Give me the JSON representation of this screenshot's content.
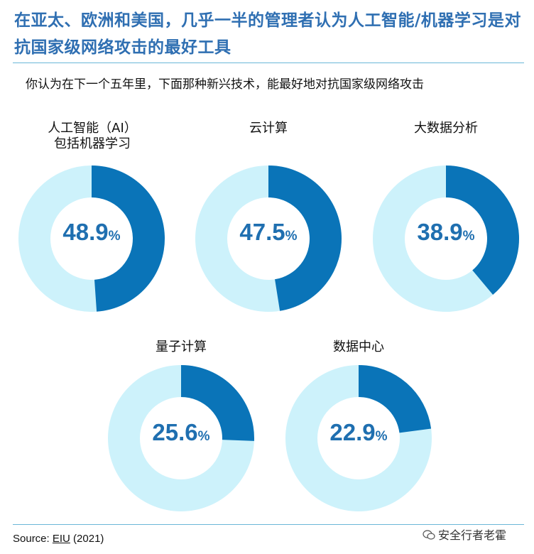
{
  "title": "在亚太、欧洲和美国，几乎一半的管理者认为人工智能/机器学习是对抗国家级网络攻击的最好工具",
  "question": "你认为在下一个五年里，下面那种新兴技术，能最好地对抗国家级网络攻击",
  "source": {
    "prefix": "Source: ",
    "org": "EIU",
    "year": " (2021)"
  },
  "watermark": "安全行者老霍",
  "colors": {
    "filled": "#0a74b8",
    "remainder": "#cdf2fb",
    "value_text": "#1f6fb0",
    "title": "#2f6fb2"
  },
  "chart_data": {
    "type": "pie",
    "style": "donut",
    "percent_symbol": "%",
    "items": [
      {
        "label_lines": [
          "人工智能（AI）",
          "包括机器学习"
        ],
        "value": 48.9,
        "value_text": "48.9"
      },
      {
        "label_lines": [
          "云计算"
        ],
        "value": 47.5,
        "value_text": "47.5"
      },
      {
        "label_lines": [
          "大数据分析"
        ],
        "value": 38.9,
        "value_text": "38.9"
      },
      {
        "label_lines": [
          "量子计算"
        ],
        "value": 25.6,
        "value_text": "25.6"
      },
      {
        "label_lines": [
          "数据中心"
        ],
        "value": 22.9,
        "value_text": "22.9"
      }
    ]
  }
}
